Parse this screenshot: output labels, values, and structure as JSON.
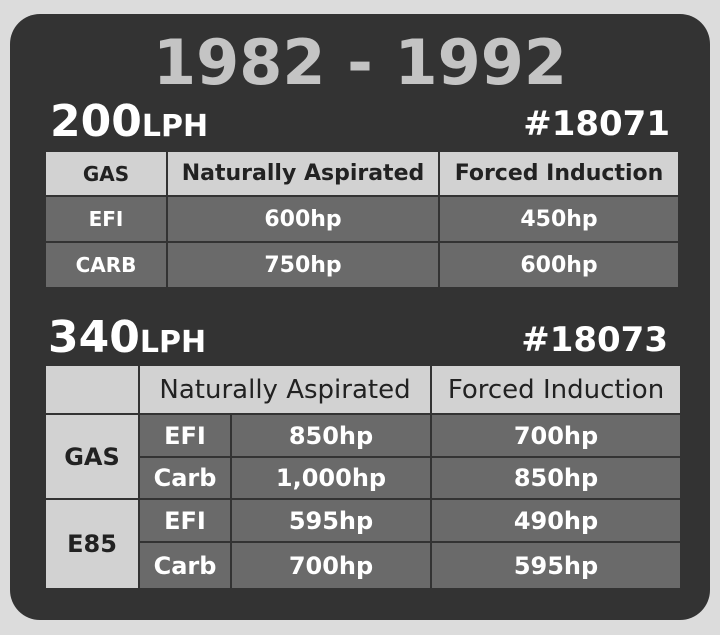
{
  "title": "1982 - 1992",
  "pumps": [
    {
      "flow": "200",
      "unit": "LPH",
      "part": "#18071",
      "table": {
        "header": [
          "GAS",
          "Naturally Aspirated",
          "Forced Induction"
        ],
        "rows": [
          [
            "EFI",
            "600hp",
            "450hp"
          ],
          [
            "CARB",
            "750hp",
            "600hp"
          ]
        ]
      }
    },
    {
      "flow": "340",
      "unit": "LPH",
      "part": "#18073",
      "table": {
        "header": [
          "Naturally Aspirated",
          "Forced Induction"
        ],
        "groups": [
          {
            "fuel": "GAS",
            "rows": [
              [
                "EFI",
                "850hp",
                "700hp"
              ],
              [
                "Carb",
                "1,000hp",
                "850hp"
              ]
            ]
          },
          {
            "fuel": "E85",
            "rows": [
              [
                "EFI",
                "595hp",
                "490hp"
              ],
              [
                "Carb",
                "700hp",
                "595hp"
              ]
            ]
          }
        ]
      }
    }
  ]
}
